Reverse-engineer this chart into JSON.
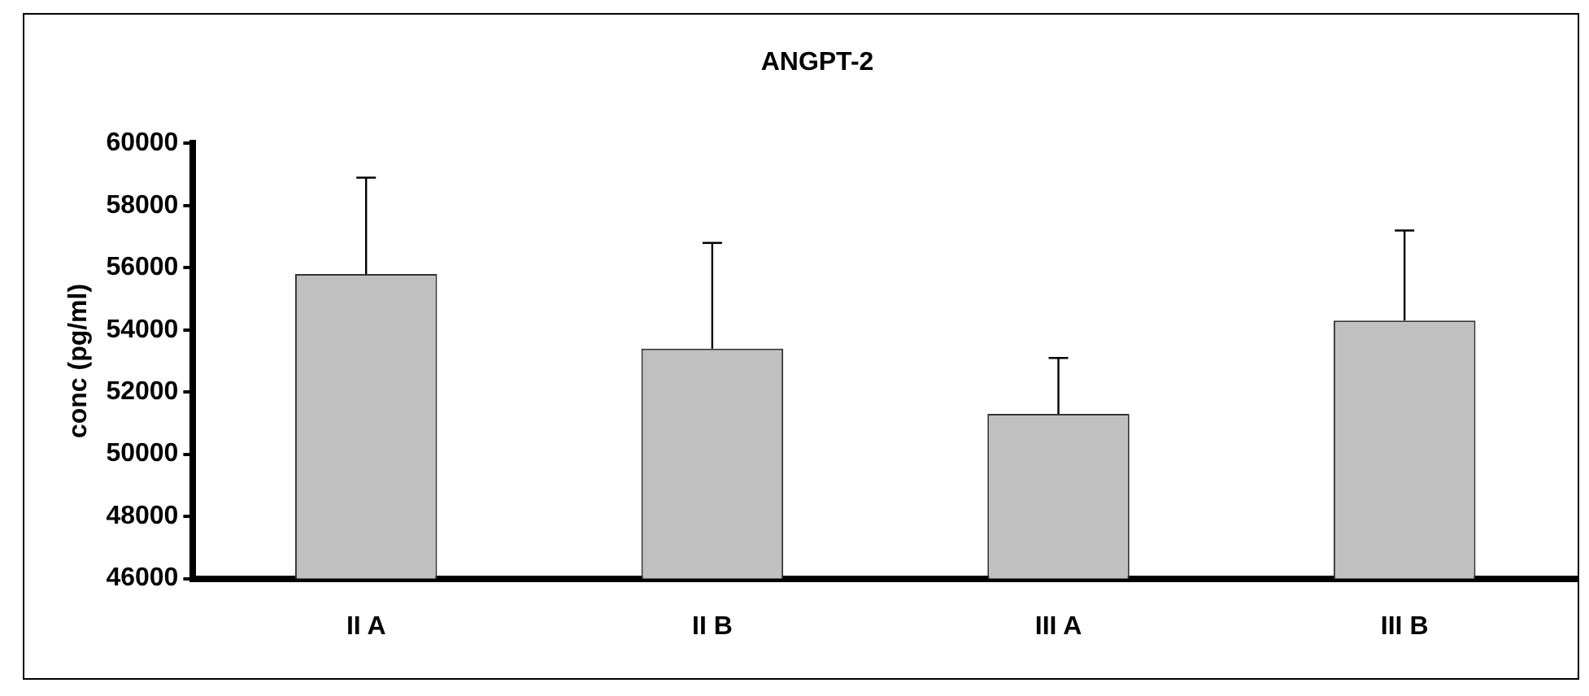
{
  "chart_data": {
    "type": "bar",
    "title": "ANGPT-2",
    "ylabel": "conc (pg/ml)",
    "categories": [
      "II A",
      "II B",
      "III A",
      "III B"
    ],
    "values": [
      55800,
      53400,
      51300,
      54300
    ],
    "errors": [
      [
        55800,
        58900
      ],
      [
        53400,
        56800
      ],
      [
        51300,
        53100
      ],
      [
        54300,
        57200
      ]
    ],
    "color": "#c0c0c0",
    "ylim": [
      46000,
      60000
    ],
    "yticks": [
      46000,
      48000,
      50000,
      52000,
      54000,
      56000,
      58000,
      60000
    ],
    "grid": false,
    "legend": false
  }
}
